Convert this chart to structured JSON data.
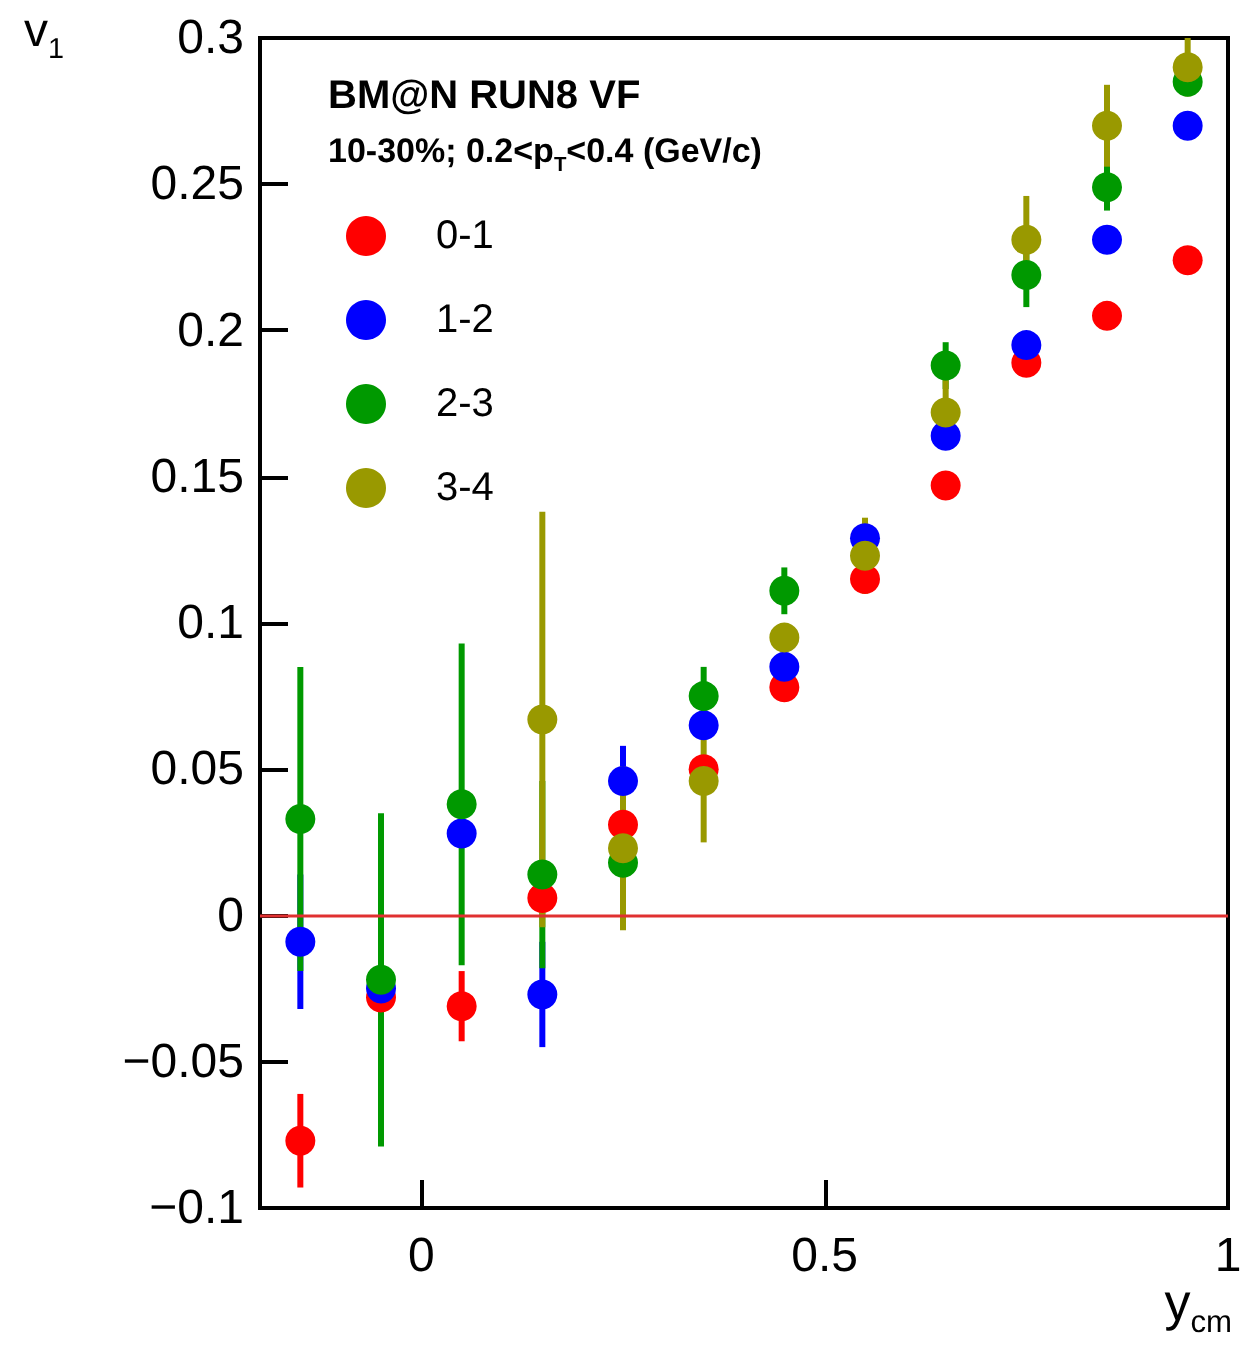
{
  "chart_data": {
    "type": "scatter",
    "xlabel": "y$_{cm}$",
    "ylabel": "v$_{1}$",
    "annotations": [
      "BM@N RUN8 VF",
      "10-30%; 0.2<p$_{T}$<0.4 (GeV/c)"
    ],
    "x": [
      -0.15,
      -0.05,
      0.05,
      0.15,
      0.25,
      0.35,
      0.45,
      0.55,
      0.65,
      0.75,
      0.85,
      0.95
    ],
    "xlim": [
      -0.2,
      1
    ],
    "xticks": [
      0,
      0.5,
      1
    ],
    "ylim": [
      -0.1,
      0.3
    ],
    "yticks": [
      {
        "value": -0.1,
        "label": "−0.1"
      },
      {
        "value": -0.05,
        "label": "−0.05"
      },
      0,
      0.05,
      0.1,
      0.15,
      0.2,
      0.25,
      0.3
    ],
    "grid": false,
    "legend": "top left",
    "marker": "circle",
    "ref_lines": [
      {
        "axis": "y",
        "value": 0,
        "label": null,
        "color": "#e03030"
      }
    ],
    "series": [
      {
        "name": "0-1",
        "color": "#ff0000",
        "values": [
          -0.077,
          -0.028,
          -0.031,
          0.006,
          0.031,
          0.05,
          0.078,
          0.115,
          0.147,
          0.189,
          0.205,
          0.224
        ],
        "errors": [
          0.016,
          null,
          0.012,
          null,
          null,
          null,
          null,
          null,
          null,
          null,
          null,
          null
        ]
      },
      {
        "name": "1-2",
        "color": "#0000ff",
        "values": [
          -0.009,
          -0.025,
          0.028,
          -0.027,
          0.046,
          0.065,
          0.085,
          0.129,
          0.164,
          0.195,
          0.231,
          0.27
        ],
        "errors": [
          0.023,
          null,
          null,
          0.018,
          0.012,
          null,
          null,
          null,
          null,
          null,
          null,
          null
        ]
      },
      {
        "name": "2-3",
        "color": "#009900",
        "values": [
          0.033,
          -0.022,
          0.038,
          0.014,
          0.018,
          0.075,
          0.111,
          null,
          0.188,
          0.219,
          0.249,
          0.285
        ],
        "errors": [
          0.052,
          0.057,
          0.055,
          0.032,
          null,
          0.01,
          0.008,
          null,
          0.008,
          0.011,
          0.008,
          null
        ]
      },
      {
        "name": "3-4",
        "color": "#999900",
        "values": [
          null,
          null,
          null,
          0.067,
          0.023,
          0.046,
          0.095,
          0.123,
          0.172,
          0.231,
          0.27,
          0.29
        ],
        "errors": [
          null,
          null,
          null,
          0.071,
          0.028,
          0.021,
          null,
          0.013,
          0.011,
          0.015,
          0.014,
          0.01
        ]
      }
    ]
  }
}
